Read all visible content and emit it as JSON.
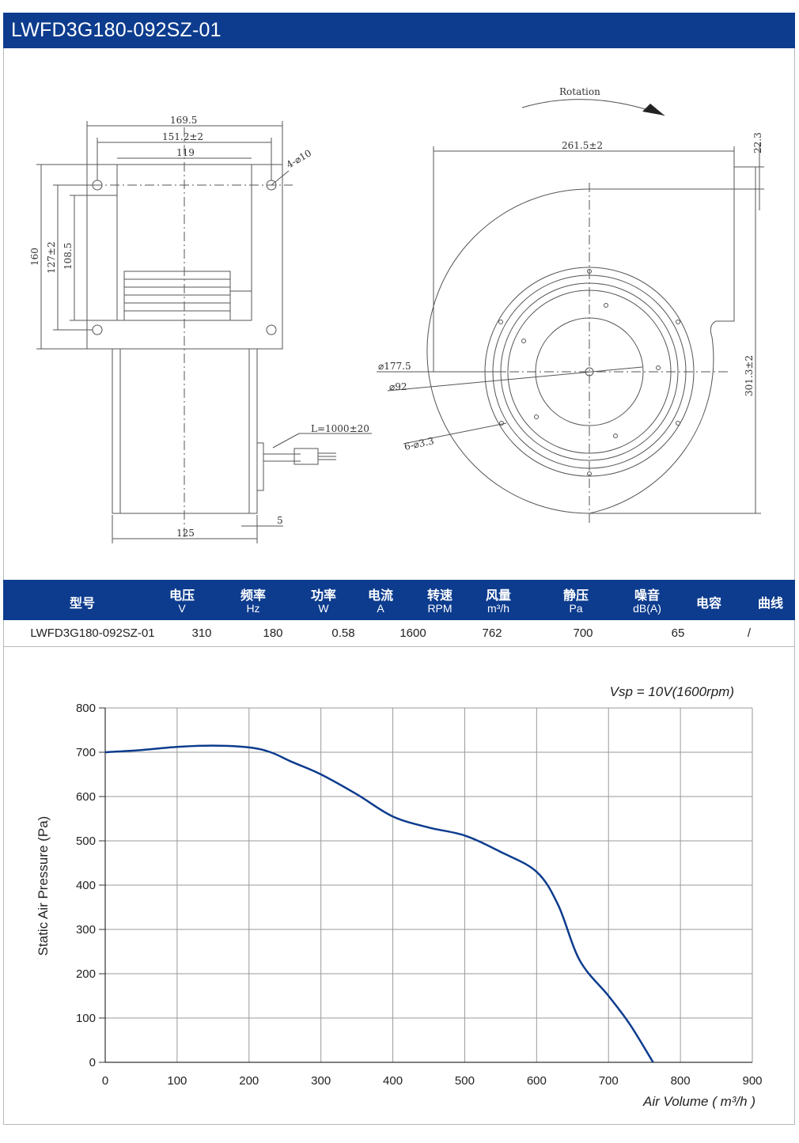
{
  "title": "LWFD3G180-092SZ-01",
  "drawing": {
    "rotation": "Rotation",
    "dim_169_5": "169.5",
    "dim_151_2": "151.2±2",
    "dim_119": "119",
    "dim_holes": "4-⌀10",
    "dim_160": "160",
    "dim_127": "127±2",
    "dim_108_5": "108.5",
    "dim_cable": "L=1000±20",
    "dim_5": "5",
    "dim_125": "125",
    "dim_261_5": "261.5±2",
    "dim_22_3": "22.3",
    "dim_301_3": "301.3±2",
    "dim_177_5": "⌀177.5",
    "dim_92": "⌀92",
    "dim_6_3_3": "6-⌀3.3"
  },
  "spec_table": {
    "headers": [
      {
        "label": "型号",
        "unit": ""
      },
      {
        "label": "电压",
        "unit": "V"
      },
      {
        "label": "频率",
        "unit": "Hz"
      },
      {
        "label": "功率",
        "unit": "W"
      },
      {
        "label": "电流",
        "unit": "A"
      },
      {
        "label": "转速",
        "unit": "RPM"
      },
      {
        "label": "风量",
        "unit": "m³/h"
      },
      {
        "label": "静压",
        "unit": "Pa"
      },
      {
        "label": "噪音",
        "unit": "dB(A)"
      },
      {
        "label": "电容",
        "unit": ""
      },
      {
        "label": "曲线",
        "unit": ""
      }
    ],
    "row": {
      "model": "LWFD3G180-092SZ-01",
      "voltage": "310",
      "frequency": "180",
      "power": "0.58",
      "speed": "1600",
      "airflow": "762",
      "pressure": "700",
      "noise": "65",
      "curve": "/"
    }
  },
  "chart_data": {
    "type": "line",
    "annotation": "Vsp = 10V(1600rpm)",
    "xlabel": "Air Volume ( m³/h )",
    "ylabel": "Static Air Pressure  (Pa)",
    "xlim": [
      0,
      900
    ],
    "ylim": [
      0,
      800
    ],
    "xticks": [
      0,
      100,
      200,
      300,
      400,
      500,
      600,
      700,
      800,
      900
    ],
    "yticks": [
      0,
      100,
      200,
      300,
      400,
      500,
      600,
      700,
      800
    ],
    "grid": true,
    "color": "#0d3c8e",
    "series": [
      {
        "x": [
          0,
          50,
          100,
          150,
          200,
          230,
          260,
          300,
          350,
          400,
          450,
          500,
          550,
          600,
          630,
          660,
          700,
          730,
          762
        ],
        "y": [
          700,
          705,
          712,
          715,
          711,
          700,
          678,
          650,
          605,
          555,
          530,
          512,
          475,
          430,
          355,
          230,
          150,
          85,
          0
        ]
      }
    ]
  }
}
